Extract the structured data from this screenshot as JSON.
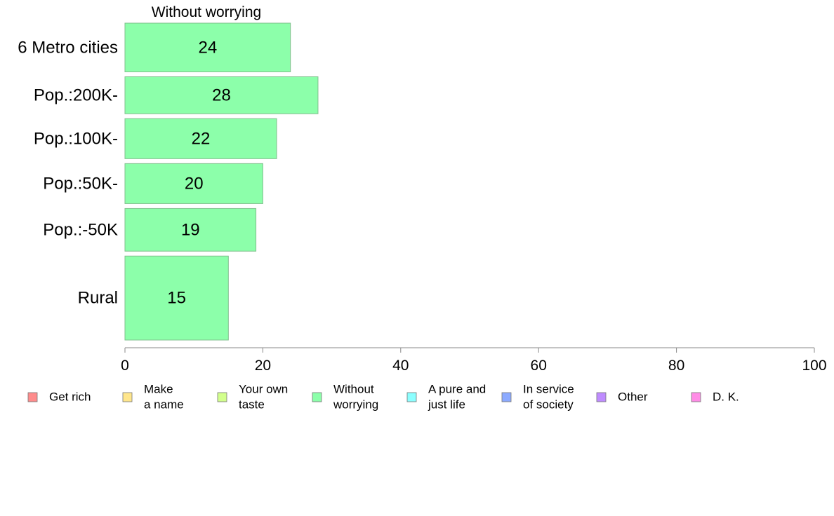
{
  "chart_data": {
    "type": "bar",
    "orientation": "horizontal",
    "title": "Without worrying",
    "categories": [
      "6 Metro cities",
      "Pop.:200K-",
      "Pop.:100K-",
      "Pop.:50K-",
      "Pop.:-50K",
      "Rural"
    ],
    "values": [
      24,
      28,
      22,
      20,
      19,
      15
    ],
    "row_weights": [
      1.12,
      0.85,
      0.92,
      0.92,
      0.98,
      1.93
    ],
    "xlim": [
      0,
      100
    ],
    "xticks": [
      0,
      20,
      40,
      60,
      80,
      100
    ],
    "grid": false,
    "legend_position": "bottom",
    "bar_color": "#8cffaa",
    "legend": [
      {
        "lines": [
          "Get rich"
        ],
        "color": "#ff8c8c"
      },
      {
        "lines": [
          "Make",
          "a name"
        ],
        "color": "#ffe68c"
      },
      {
        "lines": [
          "Your own",
          "taste"
        ],
        "color": "#d2ff8c"
      },
      {
        "lines": [
          "Without",
          "worrying"
        ],
        "color": "#8cffaa"
      },
      {
        "lines": [
          "A pure and",
          "just life"
        ],
        "color": "#8cffff"
      },
      {
        "lines": [
          "In service",
          "of society"
        ],
        "color": "#8caaff"
      },
      {
        "lines": [
          "Other"
        ],
        "color": "#bf8cff"
      },
      {
        "lines": [
          "D. K."
        ],
        "color": "#ff8ce6"
      }
    ]
  }
}
